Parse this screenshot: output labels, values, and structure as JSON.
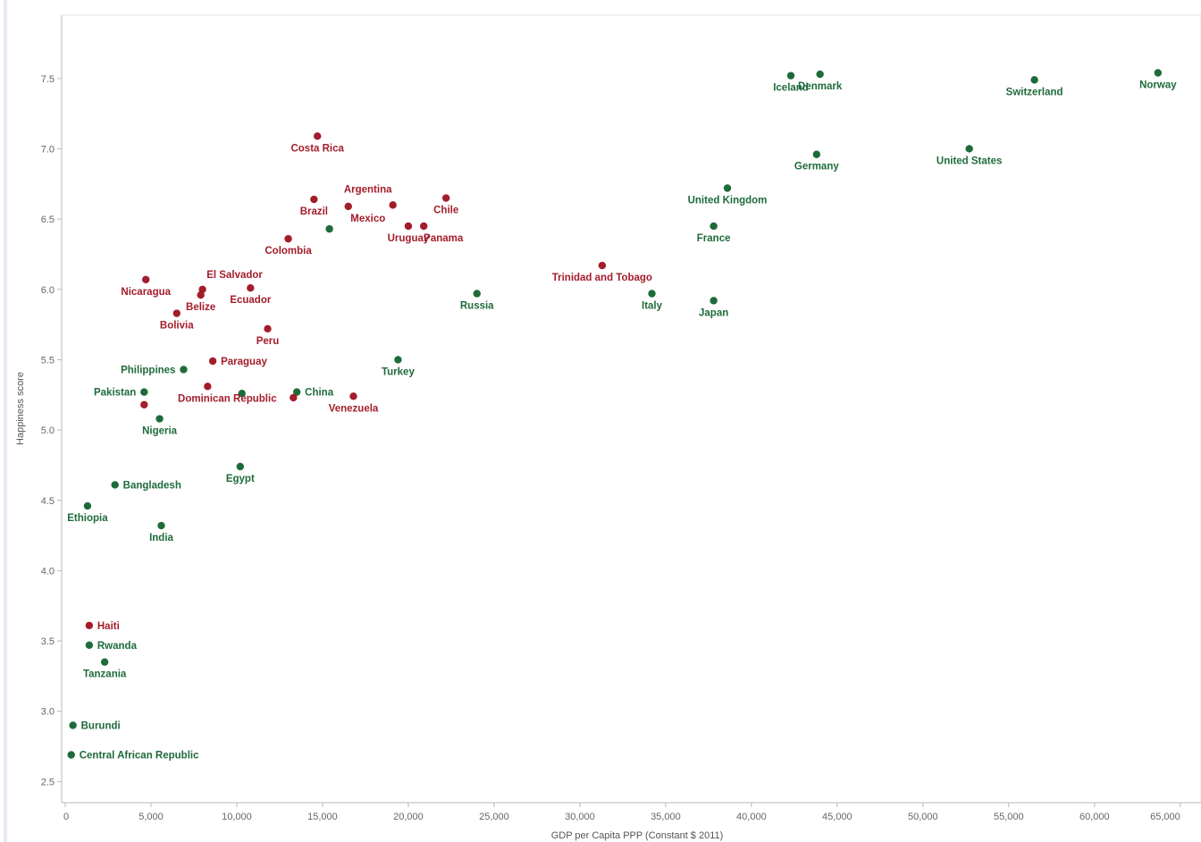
{
  "chart_data": {
    "type": "scatter",
    "xlabel": "GDP per Capita PPP (Constant $ 2011)",
    "ylabel": "Happiness score",
    "xlim": [
      0,
      66000
    ],
    "ylim": [
      2.35,
      7.95
    ],
    "x_ticks": [
      0,
      5000,
      10000,
      15000,
      20000,
      25000,
      30000,
      35000,
      40000,
      45000,
      50000,
      55000,
      60000,
      65000
    ],
    "x_tick_labels": [
      "0",
      "5,000",
      "10,000",
      "15,000",
      "20,000",
      "25,000",
      "30,000",
      "35,000",
      "40,000",
      "45,000",
      "50,000",
      "55,000",
      "60,000",
      "65,000"
    ],
    "y_ticks": [
      2.5,
      3.0,
      3.5,
      4.0,
      4.5,
      5.0,
      5.5,
      6.0,
      6.5,
      7.0,
      7.5
    ],
    "y_tick_labels": [
      "2.5",
      "3.0",
      "3.5",
      "4.0",
      "4.5",
      "5.0",
      "5.5",
      "6.0",
      "6.5",
      "7.0",
      "7.5"
    ],
    "grid": false,
    "colors": {
      "group_red": "#a31d2a",
      "group_green": "#1e6b3a"
    },
    "points": [
      {
        "label": "Norway",
        "x": 63700,
        "y": 7.54,
        "group": "green",
        "pos": "below"
      },
      {
        "label": "Switzerland",
        "x": 56500,
        "y": 7.49,
        "group": "green",
        "pos": "below"
      },
      {
        "label": "Iceland",
        "x": 42300,
        "y": 7.52,
        "group": "green",
        "pos": "below"
      },
      {
        "label": "Denmark",
        "x": 44000,
        "y": 7.53,
        "group": "green",
        "pos": "below"
      },
      {
        "label": "United States",
        "x": 52700,
        "y": 7.0,
        "group": "green",
        "pos": "below"
      },
      {
        "label": "Germany",
        "x": 43800,
        "y": 6.96,
        "group": "green",
        "pos": "below"
      },
      {
        "label": "United Kingdom",
        "x": 38600,
        "y": 6.72,
        "group": "green",
        "pos": "below"
      },
      {
        "label": "France",
        "x": 37800,
        "y": 6.45,
        "group": "green",
        "pos": "below"
      },
      {
        "label": "Japan",
        "x": 37800,
        "y": 5.92,
        "group": "green",
        "pos": "below"
      },
      {
        "label": "Italy",
        "x": 34200,
        "y": 5.97,
        "group": "green",
        "pos": "below"
      },
      {
        "label": "Trinidad and Tobago",
        "x": 31300,
        "y": 6.17,
        "group": "red",
        "pos": "below"
      },
      {
        "label": "Russia",
        "x": 24000,
        "y": 5.97,
        "group": "green",
        "pos": "below"
      },
      {
        "label": "Turkey",
        "x": 19400,
        "y": 5.5,
        "group": "green",
        "pos": "below"
      },
      {
        "label": "Costa Rica",
        "x": 14700,
        "y": 7.09,
        "group": "red",
        "pos": "below"
      },
      {
        "label": "Argentina",
        "x": 19100,
        "y": 6.6,
        "group": "red",
        "pos": "above-left"
      },
      {
        "label": "Chile",
        "x": 22200,
        "y": 6.65,
        "group": "red",
        "pos": "below"
      },
      {
        "label": "Brazil",
        "x": 14500,
        "y": 6.64,
        "group": "red",
        "pos": "below"
      },
      {
        "label": "Mexico",
        "x": 16500,
        "y": 6.59,
        "group": "red",
        "pos": "below-right"
      },
      {
        "label": "",
        "x": 15400,
        "y": 6.43,
        "group": "green",
        "pos": "none"
      },
      {
        "label": "Uruguay",
        "x": 20000,
        "y": 6.45,
        "group": "red",
        "pos": "below"
      },
      {
        "label": "Panama",
        "x": 20900,
        "y": 6.45,
        "group": "red",
        "pos": "below-right"
      },
      {
        "label": "Colombia",
        "x": 13000,
        "y": 6.36,
        "group": "red",
        "pos": "below"
      },
      {
        "label": "El Salvador",
        "x": 8000,
        "y": 6.0,
        "group": "red",
        "pos": "above-right"
      },
      {
        "label": "Ecuador",
        "x": 10800,
        "y": 6.01,
        "group": "red",
        "pos": "below"
      },
      {
        "label": "Nicaragua",
        "x": 4700,
        "y": 6.07,
        "group": "red",
        "pos": "below"
      },
      {
        "label": "Belize",
        "x": 7900,
        "y": 5.96,
        "group": "red",
        "pos": "below"
      },
      {
        "label": "Bolivia",
        "x": 6500,
        "y": 5.83,
        "group": "red",
        "pos": "below"
      },
      {
        "label": "Peru",
        "x": 11800,
        "y": 5.72,
        "group": "red",
        "pos": "below"
      },
      {
        "label": "Paraguay",
        "x": 8600,
        "y": 5.49,
        "group": "red",
        "pos": "right"
      },
      {
        "label": "Philippines",
        "x": 6900,
        "y": 5.43,
        "group": "green",
        "pos": "left"
      },
      {
        "label": "Pakistan",
        "x": 4600,
        "y": 5.27,
        "group": "green",
        "pos": "left"
      },
      {
        "label": "",
        "x": 4600,
        "y": 5.18,
        "group": "red",
        "pos": "none"
      },
      {
        "label": "Dominican Republic",
        "x": 8300,
        "y": 5.31,
        "group": "red",
        "pos": "below-right"
      },
      {
        "label": "",
        "x": 10300,
        "y": 5.26,
        "group": "green",
        "pos": "none"
      },
      {
        "label": "China",
        "x": 13500,
        "y": 5.27,
        "group": "green",
        "pos": "right"
      },
      {
        "label": "",
        "x": 13300,
        "y": 5.23,
        "group": "red",
        "pos": "none"
      },
      {
        "label": "Venezuela",
        "x": 16800,
        "y": 5.24,
        "group": "red",
        "pos": "below"
      },
      {
        "label": "Nigeria",
        "x": 5500,
        "y": 5.08,
        "group": "green",
        "pos": "below"
      },
      {
        "label": "Egypt",
        "x": 10200,
        "y": 4.74,
        "group": "green",
        "pos": "below"
      },
      {
        "label": "Bangladesh",
        "x": 2900,
        "y": 4.61,
        "group": "green",
        "pos": "right"
      },
      {
        "label": "Ethiopia",
        "x": 1300,
        "y": 4.46,
        "group": "green",
        "pos": "below"
      },
      {
        "label": "India",
        "x": 5600,
        "y": 4.32,
        "group": "green",
        "pos": "below"
      },
      {
        "label": "Haiti",
        "x": 1400,
        "y": 3.61,
        "group": "red",
        "pos": "right"
      },
      {
        "label": "Rwanda",
        "x": 1400,
        "y": 3.47,
        "group": "green",
        "pos": "right"
      },
      {
        "label": "Tanzania",
        "x": 2300,
        "y": 3.35,
        "group": "green",
        "pos": "below"
      },
      {
        "label": "Burundi",
        "x": 450,
        "y": 2.9,
        "group": "green",
        "pos": "right"
      },
      {
        "label": "Central African Republic",
        "x": 350,
        "y": 2.69,
        "group": "green",
        "pos": "right"
      }
    ]
  }
}
